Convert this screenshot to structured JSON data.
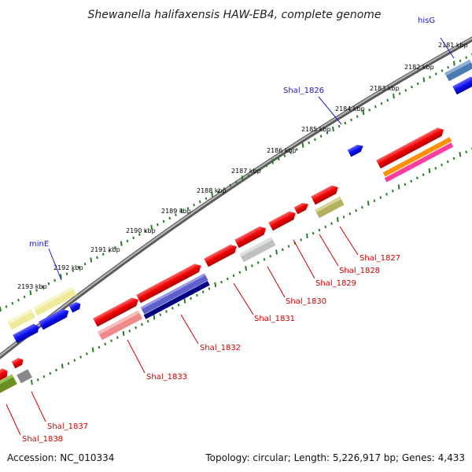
{
  "title": "Shewanella halifaxensis HAW-EB4, complete genome",
  "footer": {
    "accession": "Accession: NC_010334",
    "topology": "Topology: circular; Length: 5,226,917 bp; Genes: 4,433"
  },
  "ticks": [
    "2181 kbp",
    "2182 kbp",
    "2183 kbp",
    "2184 kbp",
    "2185 kbp",
    "2186 kbp",
    "2187 kbp",
    "2188 kbp",
    "2189 kbp",
    "2190 kbp",
    "2191 kbp",
    "2192 kbp",
    "2193 kbp"
  ],
  "labels_outer": [
    {
      "name": "hisG",
      "color": "#1a1acc"
    },
    {
      "name": "Shal_1826",
      "color": "#1a1acc"
    },
    {
      "name": "minE",
      "color": "#1a1acc"
    }
  ],
  "labels_inner": [
    {
      "name": "Shal_1827",
      "color": "#cc0000"
    },
    {
      "name": "Shal_1828",
      "color": "#cc0000"
    },
    {
      "name": "Shal_1829",
      "color": "#cc0000"
    },
    {
      "name": "Shal_1830",
      "color": "#cc0000"
    },
    {
      "name": "Shal_1831",
      "color": "#cc0000"
    },
    {
      "name": "Shal_1832",
      "color": "#cc0000"
    },
    {
      "name": "Shal_1833",
      "color": "#cc0000"
    },
    {
      "name": "Shal_1837",
      "color": "#cc0000"
    },
    {
      "name": "Shal_1838",
      "color": "#cc0000"
    }
  ],
  "colors": {
    "backbone": "#888888",
    "tick_dots": "#2a7a2a",
    "forward_gene": "#1515e6",
    "reverse_gene": "#e61515",
    "label_outer": "#1a1acc",
    "label_inner": "#cc0000"
  }
}
